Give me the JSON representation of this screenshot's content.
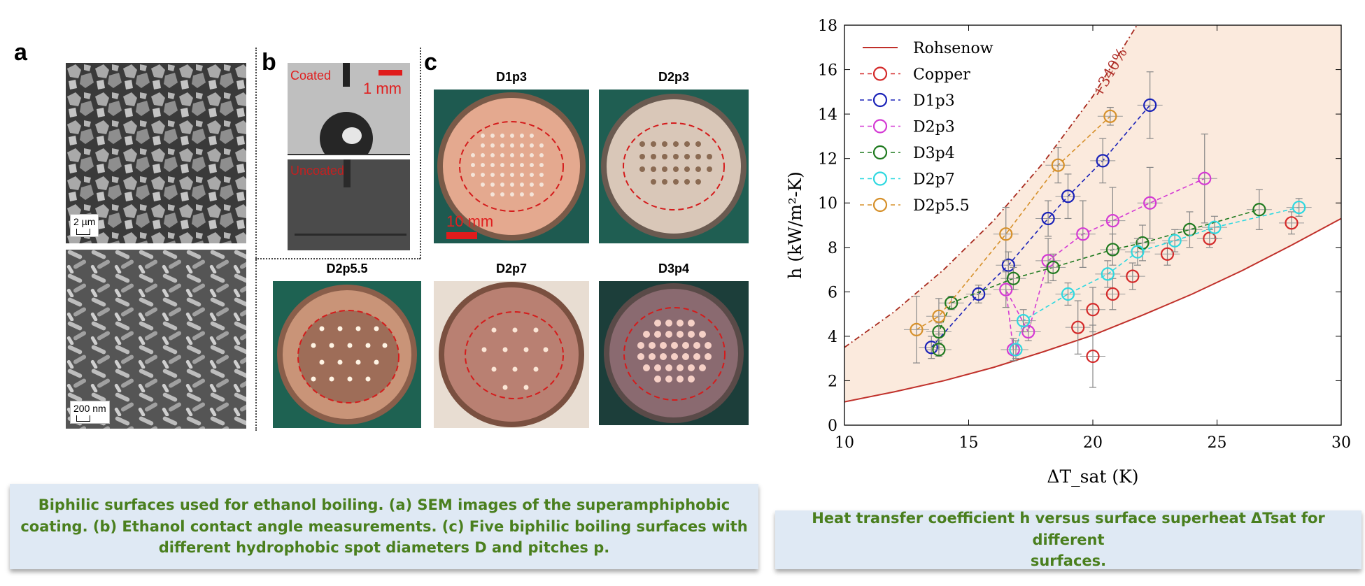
{
  "left_figure": {
    "panel_a": {
      "letter": "a",
      "scale_top": "2 µm",
      "scale_bottom": "200 nm"
    },
    "panel_b": {
      "letter": "b",
      "coated_label": "Coated",
      "scale_label": "1 mm",
      "uncoated_label": "Uncoated"
    },
    "panel_c": {
      "letter": "c",
      "scale_label": "10 mm",
      "surfaces": [
        "D1p3",
        "D2p3",
        "D2p5.5",
        "D2p7",
        "D3p4"
      ]
    }
  },
  "captions": {
    "left": [
      "Biphilic surfaces used for ethanol boiling. (a) SEM images of the superamphiphobic",
      "coating. (b) Ethanol contact angle measurements. (c) Five biphilic boiling surfaces with",
      "different hydrophobic spot diameters D and pitches p."
    ],
    "right": [
      "Heat transfer coefficient h versus surface superheat ΔTsat for different",
      "surfaces."
    ]
  },
  "chart_data": {
    "type": "scatter",
    "xlabel": "ΔT_sat (K)",
    "ylabel": "h (kW/m²-K)",
    "xlim": [
      10,
      30
    ],
    "ylim": [
      0,
      18
    ],
    "x_ticks": [
      10,
      15,
      20,
      25,
      30
    ],
    "y_ticks": [
      0,
      2,
      4,
      6,
      8,
      10,
      12,
      14,
      16,
      18
    ],
    "annotation": "+340%",
    "legend": [
      "Rohsenow",
      "Copper",
      "D1p3",
      "D2p3",
      "D3p4",
      "D2p7",
      "D2p5.5"
    ],
    "colors": {
      "Rohsenow": "#c0302a",
      "Copper": "#d42a2a",
      "D1p3": "#1a22b8",
      "D2p3": "#d43ad4",
      "D3p4": "#1f7a1f",
      "D2p7": "#2fd8e0",
      "D2p5.5": "#d6902a"
    },
    "rohsenow_curve": {
      "x": [
        10,
        12,
        14,
        16,
        18,
        20,
        22,
        24,
        26,
        28,
        30
      ],
      "y": [
        1.05,
        1.5,
        2.0,
        2.6,
        3.3,
        4.05,
        4.95,
        5.9,
        6.95,
        8.1,
        9.3
      ]
    },
    "upper_curve": {
      "x": [
        10,
        12,
        14,
        16,
        18,
        20,
        21,
        22
      ],
      "y": [
        3.5,
        5.1,
        7.0,
        9.2,
        11.8,
        14.8,
        16.6,
        18.4
      ]
    },
    "series": [
      {
        "name": "Copper",
        "x": [
          20.0,
          19.4,
          20.0,
          20.8,
          21.6,
          23.0,
          24.7,
          28.0
        ],
        "y": [
          3.1,
          4.4,
          5.2,
          5.9,
          6.7,
          7.7,
          8.4,
          9.1
        ],
        "yerr": [
          1.4,
          1.2,
          1.0,
          0.7,
          0.6,
          0.5,
          0.4,
          0.5
        ],
        "connected": false
      },
      {
        "name": "D1p3",
        "x": [
          13.5,
          15.4,
          16.6,
          18.2,
          19.0,
          20.4,
          22.3
        ],
        "y": [
          3.5,
          5.9,
          7.2,
          9.3,
          10.3,
          11.9,
          14.4
        ],
        "yerr": [
          0.5,
          0.4,
          0.6,
          0.8,
          1.0,
          1.0,
          1.5
        ],
        "connected": true
      },
      {
        "name": "D2p3",
        "x": [
          16.8,
          16.5,
          17.4,
          18.2,
          19.6,
          20.8,
          22.3,
          24.5
        ],
        "y": [
          3.4,
          6.1,
          4.2,
          7.4,
          8.6,
          9.2,
          10.0,
          11.1
        ],
        "yerr": [
          0.5,
          0.8,
          0.4,
          1.0,
          1.5,
          1.5,
          1.6,
          2.0
        ],
        "connected": true
      },
      {
        "name": "D3p4",
        "x": [
          13.8,
          13.8,
          14.3,
          16.8,
          18.4,
          20.8,
          22.0,
          23.9,
          26.7
        ],
        "y": [
          3.4,
          4.2,
          5.5,
          6.6,
          7.1,
          7.9,
          8.2,
          8.8,
          9.7
        ],
        "yerr": [
          0.3,
          0.4,
          0.3,
          0.5,
          0.6,
          0.7,
          0.8,
          0.8,
          0.9
        ],
        "connected": true
      },
      {
        "name": "D2p7",
        "x": [
          16.9,
          17.2,
          19.0,
          20.6,
          21.8,
          23.3,
          24.9,
          28.3
        ],
        "y": [
          3.4,
          4.7,
          5.9,
          6.8,
          7.8,
          8.3,
          8.9,
          9.8
        ],
        "yerr": [
          0.4,
          0.5,
          0.5,
          0.6,
          0.6,
          0.5,
          0.5,
          0.4
        ],
        "connected": true
      },
      {
        "name": "D2p5.5",
        "x": [
          12.9,
          13.8,
          16.5,
          18.6,
          20.7
        ],
        "y": [
          4.3,
          4.9,
          8.6,
          11.7,
          13.9
        ],
        "yerr": [
          1.5,
          0.8,
          1.2,
          0.8,
          0.4
        ],
        "connected": true
      }
    ]
  }
}
